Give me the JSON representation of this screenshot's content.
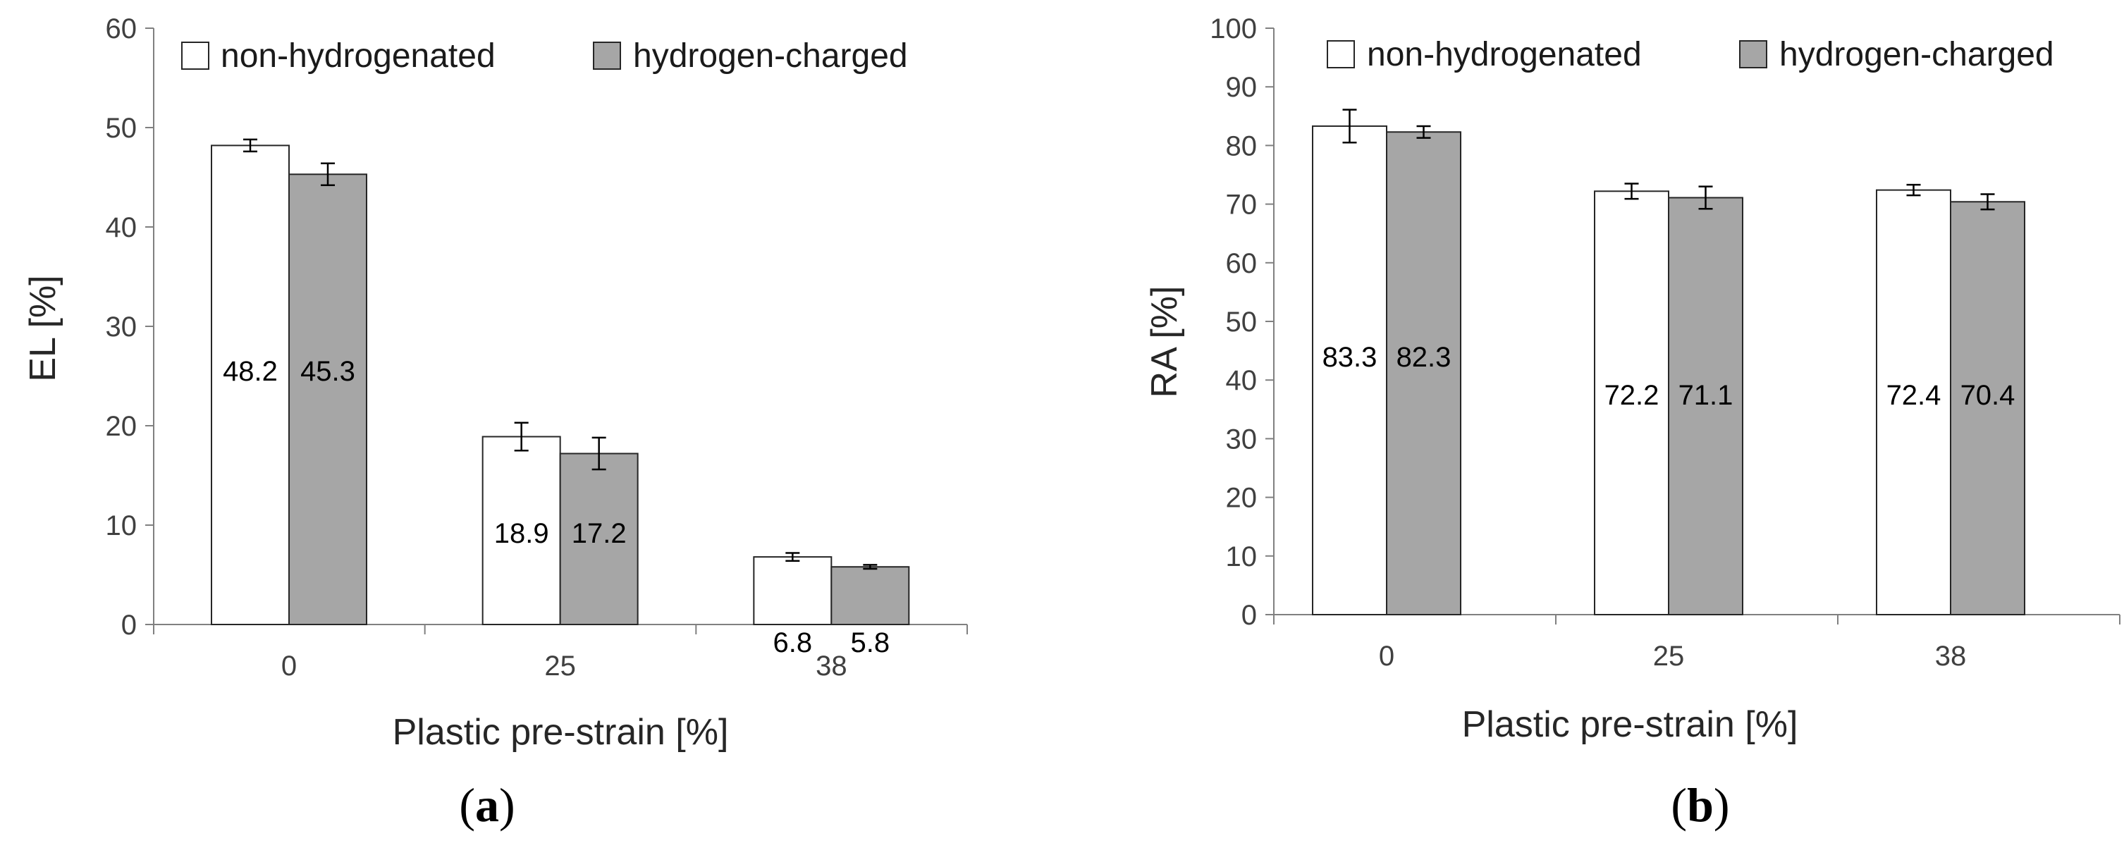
{
  "colors": {
    "non_hydrogenated_fill": "#ffffff",
    "hydrogen_charged_fill": "#a6a6a6",
    "bar_stroke": "#262626",
    "axis": "#808080"
  },
  "chart_data": [
    {
      "panel": "a",
      "type": "bar",
      "caption": {
        "open": "(",
        "letter": "a",
        "close": ")"
      },
      "xlabel": "Plastic pre-strain [%]",
      "ylabel": "EL [%]",
      "ylim": [
        0,
        60
      ],
      "yticks": [
        "0",
        "10",
        "20",
        "30",
        "40",
        "50",
        "60"
      ],
      "grid": false,
      "legend_position": "top",
      "categories": [
        "0",
        "25",
        "38"
      ],
      "series": [
        {
          "name": "non-hydrogenated",
          "values": [
            48.2,
            18.9,
            6.8
          ],
          "labels": [
            "48.2",
            "18.9",
            "6.8"
          ],
          "error": [
            0.6,
            1.4,
            0.4
          ]
        },
        {
          "name": "hydrogen-charged",
          "values": [
            45.3,
            17.2,
            5.8
          ],
          "labels": [
            "45.3",
            "17.2",
            "5.8"
          ],
          "error": [
            1.1,
            1.6,
            0.2
          ]
        }
      ]
    },
    {
      "panel": "b",
      "type": "bar",
      "caption": {
        "open": "(",
        "letter": "b",
        "close": ")"
      },
      "xlabel": "Plastic pre-strain [%]",
      "ylabel": "RA [%]",
      "ylim": [
        0,
        100
      ],
      "yticks": [
        "0",
        "10",
        "20",
        "30",
        "40",
        "50",
        "60",
        "70",
        "80",
        "90",
        "100"
      ],
      "grid": false,
      "legend_position": "top",
      "categories": [
        "0",
        "25",
        "38"
      ],
      "series": [
        {
          "name": "non-hydrogenated",
          "values": [
            83.3,
            72.2,
            72.4
          ],
          "labels": [
            "83.3",
            "72.2",
            "72.4"
          ],
          "error": [
            2.8,
            1.3,
            0.9
          ]
        },
        {
          "name": "hydrogen-charged",
          "values": [
            82.3,
            71.1,
            70.4
          ],
          "labels": [
            "82.3",
            "71.1",
            "70.4"
          ],
          "error": [
            1.0,
            1.9,
            1.3
          ]
        }
      ]
    }
  ]
}
